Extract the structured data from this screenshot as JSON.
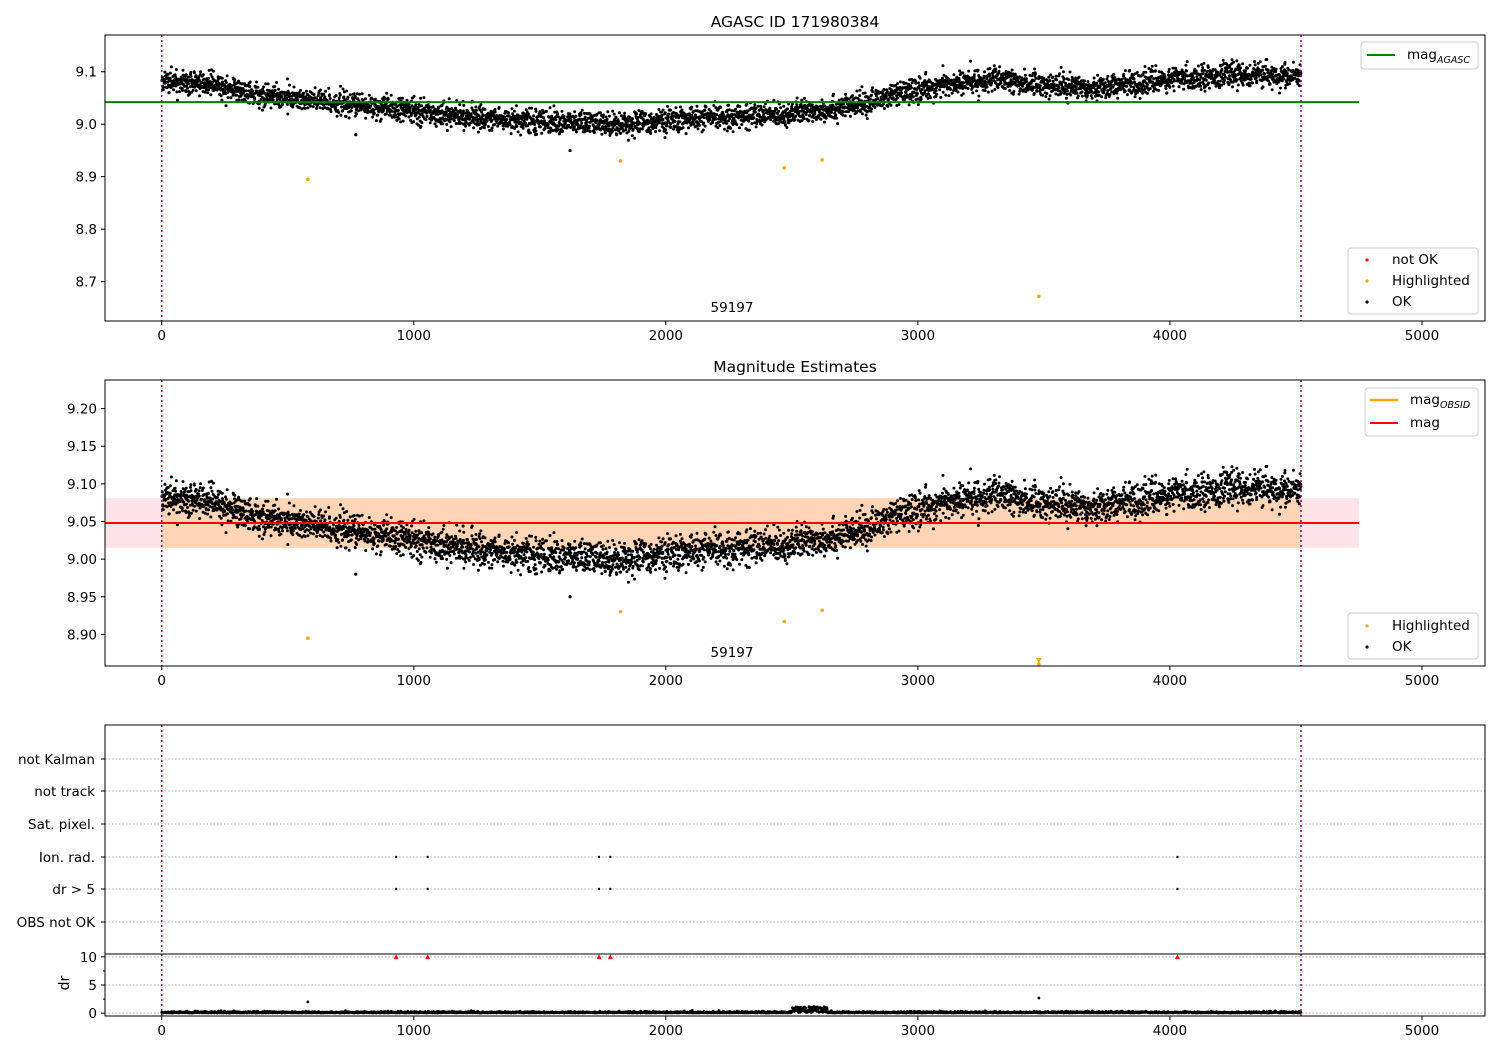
{
  "chart_data": [
    {
      "type": "scatter",
      "title": "AGASC ID 171980384",
      "xlabel": "",
      "ylabel": "",
      "xlim": [
        -225,
        5250
      ],
      "ylim": [
        8.625,
        9.17
      ],
      "xticks": [
        0,
        1000,
        2000,
        3000,
        4000,
        5000
      ],
      "yticks": [
        8.7,
        8.8,
        8.9,
        9.0,
        9.1
      ],
      "grid": false,
      "series_trend": [
        [
          0,
          9.08
        ],
        [
          150,
          9.08
        ],
        [
          400,
          9.055
        ],
        [
          600,
          9.045
        ],
        [
          900,
          9.03
        ],
        [
          1200,
          9.015
        ],
        [
          1500,
          9.005
        ],
        [
          1800,
          9.0
        ],
        [
          2100,
          9.01
        ],
        [
          2500,
          9.02
        ],
        [
          2750,
          9.035
        ],
        [
          2900,
          9.055
        ],
        [
          3100,
          9.075
        ],
        [
          3300,
          9.085
        ],
        [
          3500,
          9.075
        ],
        [
          3700,
          9.07
        ],
        [
          4000,
          9.085
        ],
        [
          4250,
          9.095
        ],
        [
          4520,
          9.09
        ]
      ],
      "series_scatter_sd": 0.011,
      "ok_outliers": [
        [
          770,
          8.98
        ],
        [
          1620,
          8.95
        ]
      ],
      "highlighted": [
        [
          580,
          8.895
        ],
        [
          1820,
          8.93
        ],
        [
          2470,
          8.917
        ],
        [
          2620,
          8.932
        ],
        [
          3480,
          8.672
        ]
      ],
      "hlines": [
        {
          "name": "mag_AGASC",
          "y": 9.042,
          "x_range": [
            -225,
            4750
          ],
          "color": "#008000"
        }
      ],
      "vlines": [
        0,
        4520
      ],
      "annotation": {
        "text": "59197",
        "x": 2260,
        "y": 8.643
      },
      "legend_top": {
        "placement": "upper right",
        "entries": [
          {
            "label": "mag",
            "subscript": "AGASC",
            "color": "#008000"
          }
        ]
      },
      "legend_bottom": {
        "placement": "lower right",
        "entries": [
          {
            "label": "not OK",
            "color": "#ff0000"
          },
          {
            "label": "Highlighted",
            "color": "#ffa500"
          },
          {
            "label": "OK",
            "color": "#000000"
          }
        ]
      }
    },
    {
      "type": "scatter",
      "title": "Magnitude Estimates",
      "xlabel": "",
      "ylabel": "",
      "xlim": [
        -225,
        5250
      ],
      "ylim": [
        8.858,
        9.238
      ],
      "xticks": [
        0,
        1000,
        2000,
        3000,
        4000,
        5000
      ],
      "yticks": [
        8.9,
        8.95,
        9.0,
        9.05,
        9.1,
        9.15,
        9.2
      ],
      "grid": false,
      "series_trend": [
        [
          0,
          9.08
        ],
        [
          150,
          9.08
        ],
        [
          400,
          9.055
        ],
        [
          600,
          9.045
        ],
        [
          900,
          9.03
        ],
        [
          1200,
          9.015
        ],
        [
          1500,
          9.005
        ],
        [
          1800,
          9.0
        ],
        [
          2100,
          9.01
        ],
        [
          2500,
          9.02
        ],
        [
          2750,
          9.035
        ],
        [
          2900,
          9.055
        ],
        [
          3100,
          9.075
        ],
        [
          3300,
          9.085
        ],
        [
          3500,
          9.075
        ],
        [
          3700,
          9.07
        ],
        [
          4000,
          9.085
        ],
        [
          4250,
          9.095
        ],
        [
          4520,
          9.09
        ]
      ],
      "series_scatter_sd": 0.011,
      "ok_outliers": [
        [
          770,
          8.98
        ],
        [
          1620,
          8.95
        ]
      ],
      "highlighted": [
        [
          580,
          8.895
        ],
        [
          1820,
          8.93
        ],
        [
          2470,
          8.917
        ],
        [
          2620,
          8.932
        ],
        [
          3480,
          8.861
        ]
      ],
      "mag_band": {
        "y0": 9.015,
        "y1": 9.081,
        "x_range": [
          -225,
          4750
        ],
        "color": "#ffc0cb"
      },
      "obsid_band": {
        "y0": 9.015,
        "y1": 9.081,
        "x_range": [
          0,
          4520
        ],
        "color": "#ffa500"
      },
      "hlines": [
        {
          "name": "mag",
          "y": 9.048,
          "x_range": [
            -225,
            4750
          ],
          "color": "#ff0000"
        }
      ],
      "vlines": [
        0,
        4520
      ],
      "annotation": {
        "text": "59197",
        "x": 2260,
        "y": 8.87
      },
      "legend_top": {
        "placement": "upper right",
        "entries": [
          {
            "label": "mag",
            "subscript": "OBSID",
            "color": "#ffa500"
          },
          {
            "label": "mag",
            "subscript": "",
            "color": "#ff0000"
          }
        ]
      },
      "legend_bottom": {
        "placement": "lower right",
        "entries": [
          {
            "label": "Highlighted",
            "color": "#ffa500"
          },
          {
            "label": "OK",
            "color": "#000000"
          }
        ]
      }
    },
    {
      "type": "scatter",
      "title": "",
      "xlabel": "",
      "ylabel": "",
      "xlim": [
        -225,
        5250
      ],
      "categories": [
        "not Kalman",
        "not track",
        "Sat. pixel.",
        "Ion. rad.",
        "dr > 5",
        "OBS not OK"
      ],
      "flag_points": {
        "Ion. rad.": [
          930,
          1055,
          1735,
          1780,
          4030
        ],
        "dr > 5": [
          930,
          1055,
          1735,
          1780,
          4030
        ]
      },
      "vlines": [
        0,
        4520
      ]
    },
    {
      "type": "scatter",
      "title": "",
      "xlabel": "",
      "ylabel": "dr",
      "xlim": [
        -225,
        5250
      ],
      "ylim": [
        -0.5,
        10.5
      ],
      "xticks": [
        0,
        1000,
        2000,
        3000,
        4000,
        5000
      ],
      "yticks": [
        0,
        5,
        10
      ],
      "grid": "y dotted",
      "clipped_points": [
        930,
        1055,
        1735,
        1780,
        4030
      ],
      "outliers": [
        [
          580,
          2.0
        ],
        [
          3480,
          2.7
        ]
      ],
      "bump": {
        "x_range": [
          2500,
          2640
        ],
        "height": 1.0
      },
      "vlines": [
        0,
        4520
      ]
    }
  ]
}
